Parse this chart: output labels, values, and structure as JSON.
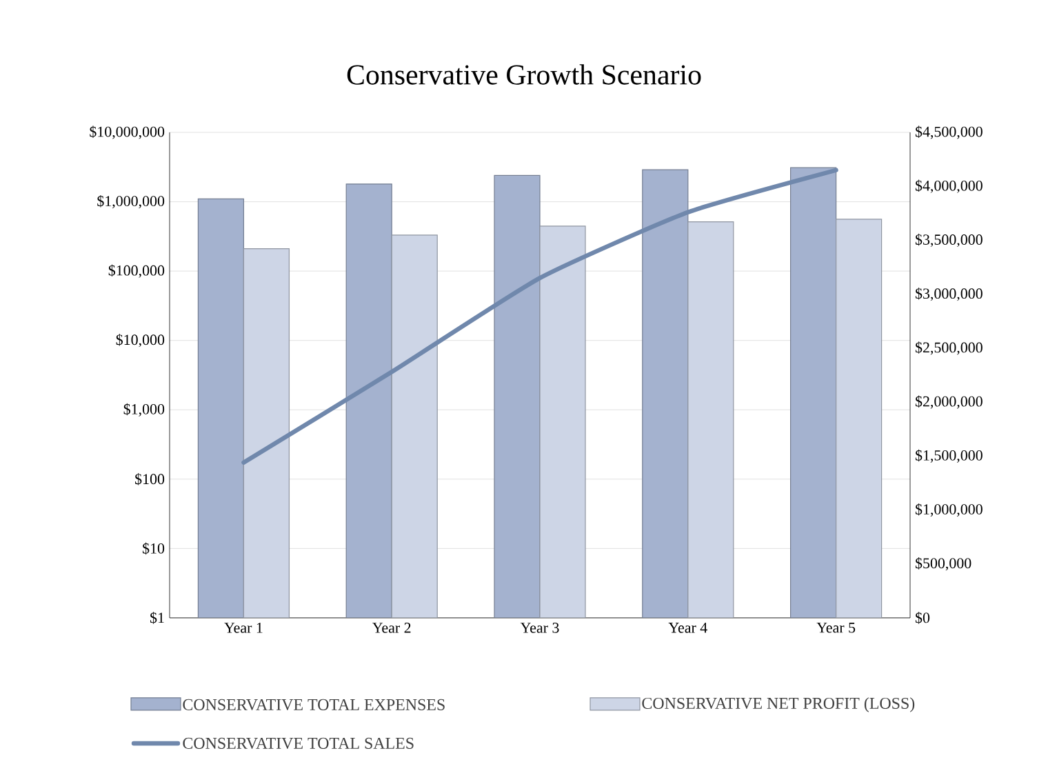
{
  "chart_data": {
    "type": "bar",
    "title": "Conservative  Growth Scenario",
    "categories": [
      "Year 1",
      "Year 2",
      "Year 3",
      "Year 4",
      "Year 5"
    ],
    "series": [
      {
        "name": "CONSERVATIVE TOTAL EXPENSES",
        "color": "#a4b2cf",
        "values": [
          1100000,
          1800000,
          2400000,
          2900000,
          3100000
        ]
      },
      {
        "name": "CONSERVATIVE NET PROFIT (LOSS)",
        "color": "#cdd5e6",
        "values": [
          210000,
          330000,
          445000,
          515000,
          560000
        ]
      },
      {
        "name": "CONSERVATIVE TOTAL SALES",
        "type": "line",
        "axis": "y2",
        "color": "#7088ac",
        "values": [
          1440000,
          2280000,
          3150000,
          3760000,
          4150000
        ]
      }
    ],
    "log": "y",
    "ylim": [
      1,
      10000000
    ],
    "yticks": [
      {
        "value": 1,
        "label": "$1"
      },
      {
        "value": 10,
        "label": "$10"
      },
      {
        "value": 100,
        "label": "$100"
      },
      {
        "value": 1000,
        "label": "$1,000"
      },
      {
        "value": 10000,
        "label": "$10,000"
      },
      {
        "value": 100000,
        "label": "$100,000"
      },
      {
        "value": 1000000,
        "label": "$1,000,000"
      },
      {
        "value": 10000000,
        "label": "$10,000,000"
      }
    ],
    "y2lim": [
      0,
      4500000
    ],
    "y2ticks": [
      {
        "value": 0,
        "label": "$0"
      },
      {
        "value": 500000,
        "label": "$500,000"
      },
      {
        "value": 1000000,
        "label": "$1,000,000"
      },
      {
        "value": 1500000,
        "label": "$1,500,000"
      },
      {
        "value": 2000000,
        "label": "$2,000,000"
      },
      {
        "value": 2500000,
        "label": "$2,500,000"
      },
      {
        "value": 3000000,
        "label": "$3,000,000"
      },
      {
        "value": 3500000,
        "label": "$3,500,000"
      },
      {
        "value": 4000000,
        "label": "$4,000,000"
      },
      {
        "value": 4500000,
        "label": "$4,500,000"
      }
    ],
    "grid": "y",
    "legend": "bottom"
  }
}
